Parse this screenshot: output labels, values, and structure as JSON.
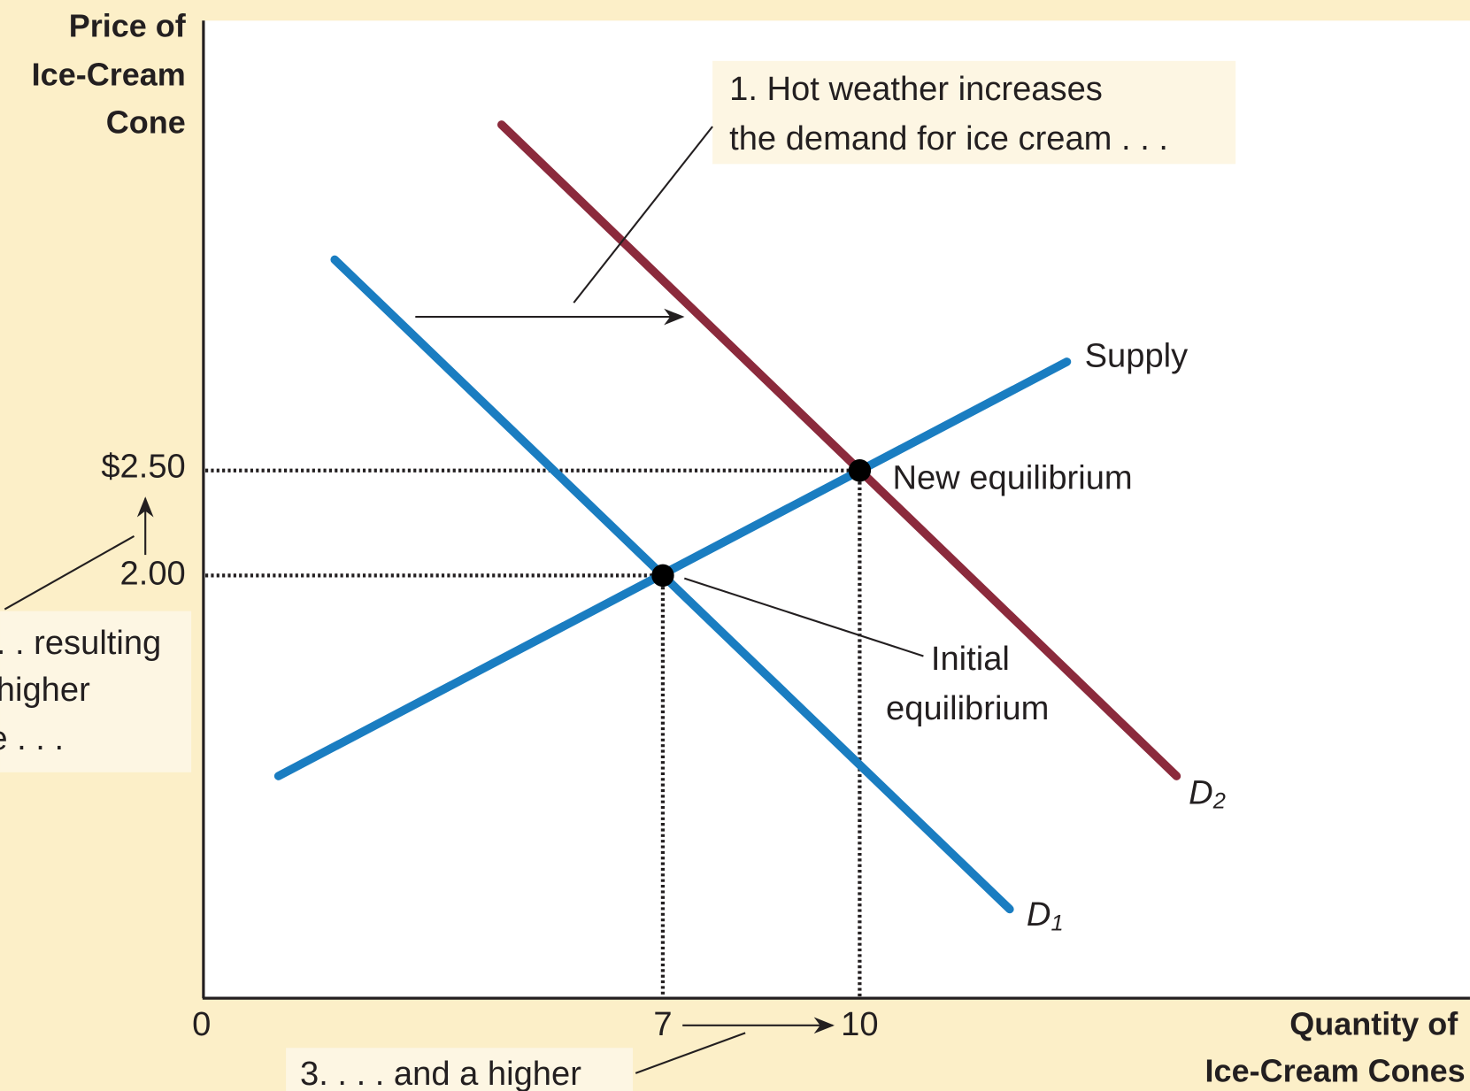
{
  "y_axis_label": [
    "Price of",
    "Ice-Cream",
    "Cone"
  ],
  "x_axis_label": [
    "Quantity of",
    "Ice-Cream Cones"
  ],
  "y_ticks": [
    "$2.50",
    "2.00"
  ],
  "x_ticks": [
    "0",
    "7",
    "10"
  ],
  "annotations": {
    "demand_shift": [
      "1. Hot weather increases",
      "the demand for ice cream . . ."
    ],
    "price": [
      ". . resulting",
      "higher",
      "e . . ."
    ],
    "quantity": [
      "3. . . . and a higher"
    ]
  },
  "curve_labels": {
    "supply": "Supply",
    "d1": {
      "letter": "D",
      "subscript": "1"
    },
    "d2": {
      "letter": "D",
      "subscript": "2"
    }
  },
  "point_labels": {
    "new": "New equilibrium",
    "initial": [
      "Initial",
      "equilibrium"
    ]
  }
}
